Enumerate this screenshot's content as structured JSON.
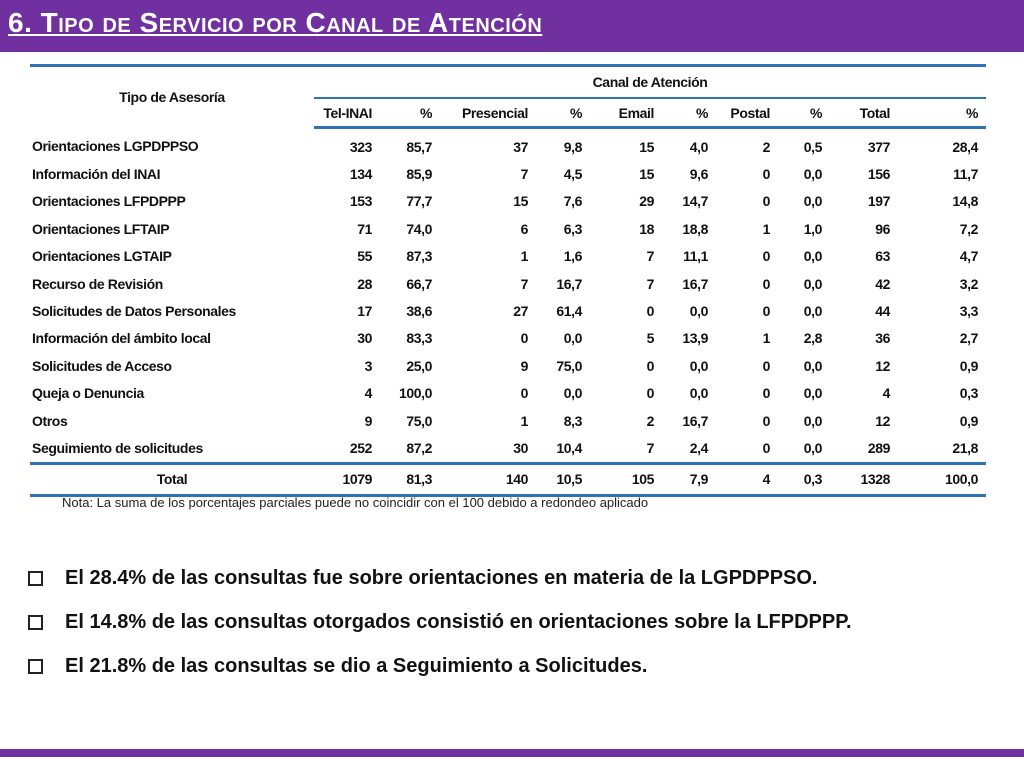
{
  "slide": {
    "title": "6. Tipo de Servicio por Canal de Atención",
    "note": "Nota: La suma de los porcentajes parciales puede no coincidir con el 100 debido a redondeo aplicado"
  },
  "table": {
    "row_header": "Tipo de Asesoría",
    "group_header": "Canal de Atención",
    "columns": [
      "Tel-INAI",
      "%",
      "Presencial",
      "%",
      "Email",
      "%",
      "Postal",
      "%",
      "Total",
      "%"
    ],
    "rows": [
      {
        "label": "Orientaciones LGPDPPSO",
        "cells": [
          "323",
          "85,7",
          "37",
          "9,8",
          "15",
          "4,0",
          "2",
          "0,5",
          "377",
          "28,4"
        ]
      },
      {
        "label": "Información del INAI",
        "cells": [
          "134",
          "85,9",
          "7",
          "4,5",
          "15",
          "9,6",
          "0",
          "0,0",
          "156",
          "11,7"
        ]
      },
      {
        "label": "Orientaciones LFPDPPP",
        "cells": [
          "153",
          "77,7",
          "15",
          "7,6",
          "29",
          "14,7",
          "0",
          "0,0",
          "197",
          "14,8"
        ]
      },
      {
        "label": "Orientaciones LFTAIP",
        "cells": [
          "71",
          "74,0",
          "6",
          "6,3",
          "18",
          "18,8",
          "1",
          "1,0",
          "96",
          "7,2"
        ]
      },
      {
        "label": "Orientaciones LGTAIP",
        "cells": [
          "55",
          "87,3",
          "1",
          "1,6",
          "7",
          "11,1",
          "0",
          "0,0",
          "63",
          "4,7"
        ]
      },
      {
        "label": "Recurso de Revisión",
        "cells": [
          "28",
          "66,7",
          "7",
          "16,7",
          "7",
          "16,7",
          "0",
          "0,0",
          "42",
          "3,2"
        ]
      },
      {
        "label": "Solicitudes de Datos Personales",
        "cells": [
          "17",
          "38,6",
          "27",
          "61,4",
          "0",
          "0,0",
          "0",
          "0,0",
          "44",
          "3,3"
        ]
      },
      {
        "label": "Información del ámbito local",
        "cells": [
          "30",
          "83,3",
          "0",
          "0,0",
          "5",
          "13,9",
          "1",
          "2,8",
          "36",
          "2,7"
        ]
      },
      {
        "label": "Solicitudes de Acceso",
        "cells": [
          "3",
          "25,0",
          "9",
          "75,0",
          "0",
          "0,0",
          "0",
          "0,0",
          "12",
          "0,9"
        ]
      },
      {
        "label": "Queja o Denuncia",
        "cells": [
          "4",
          "100,0",
          "0",
          "0,0",
          "0",
          "0,0",
          "0",
          "0,0",
          "4",
          "0,3"
        ]
      },
      {
        "label": "Otros",
        "cells": [
          "9",
          "75,0",
          "1",
          "8,3",
          "2",
          "16,7",
          "0",
          "0,0",
          "12",
          "0,9"
        ]
      },
      {
        "label": "Seguimiento de solicitudes",
        "cells": [
          "252",
          "87,2",
          "30",
          "10,4",
          "7",
          "2,4",
          "0",
          "0,0",
          "289",
          "21,8"
        ]
      }
    ],
    "total": {
      "label": "Total",
      "cells": [
        "1079",
        "81,3",
        "140",
        "10,5",
        "105",
        "7,9",
        "4",
        "0,3",
        "1328",
        "100,0"
      ]
    }
  },
  "bullets": [
    "El 28.4% de las consultas fue sobre orientaciones en materia de la LGPDPPSO.",
    "El 14.8% de las consultas otorgados consistió en orientaciones sobre la LFPDPPP.",
    "El 21.8% de las consultas se dio a Seguimiento a Solicitudes."
  ],
  "colors": {
    "accent_purple": "#7030a0",
    "table_rule_blue": "#2e74b5"
  },
  "icons": {
    "bullet": "checkbox-bullet-icon"
  }
}
